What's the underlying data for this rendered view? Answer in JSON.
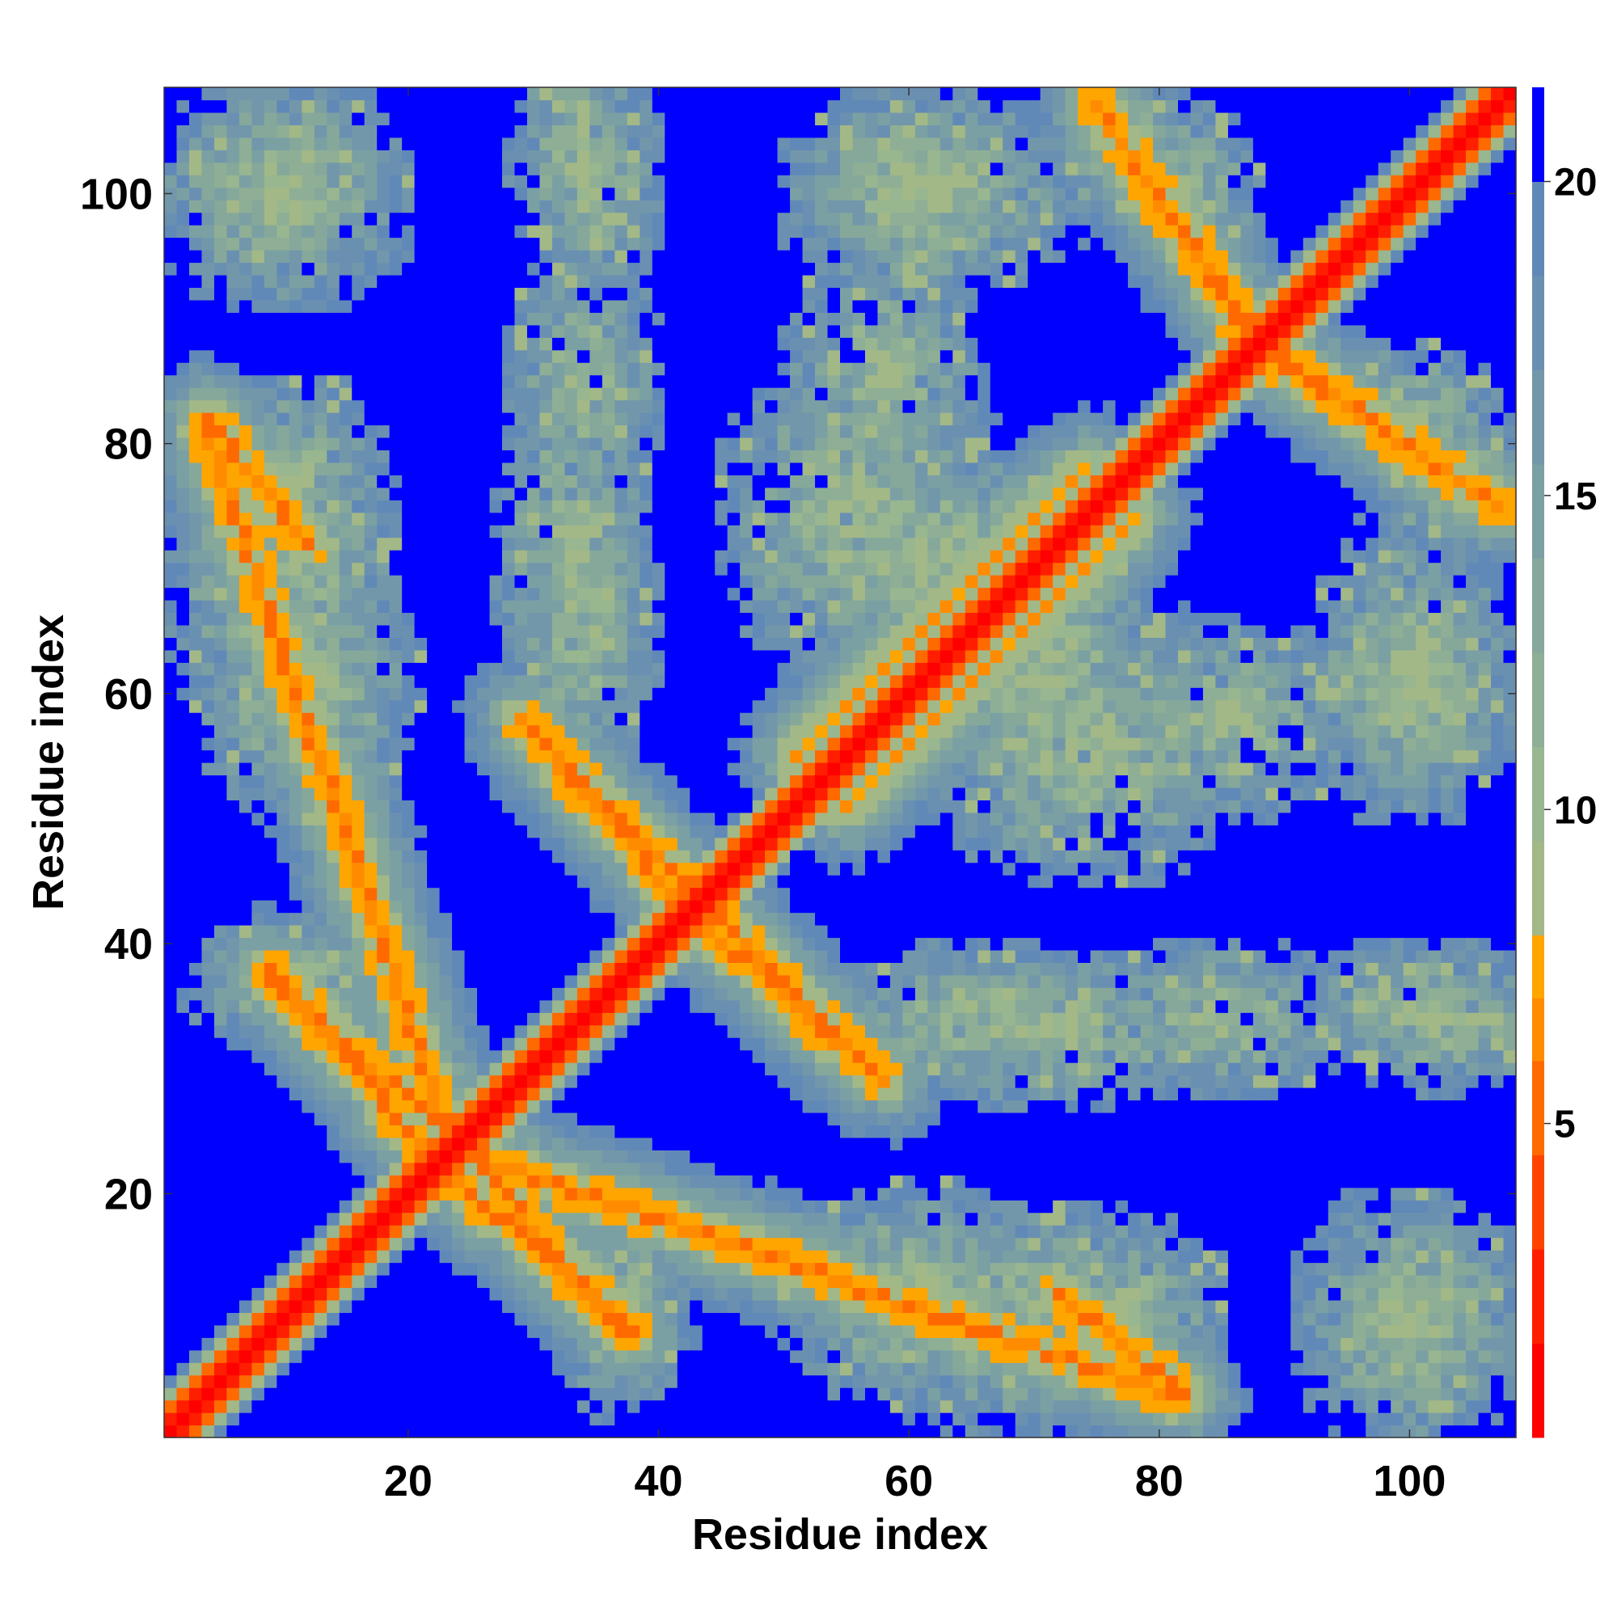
{
  "chart_data": {
    "type": "heatmap",
    "title": "",
    "xlabel": "Residue index",
    "ylabel": "Residue index",
    "n_residues": 108,
    "xlim": [
      0.5,
      108.5
    ],
    "ylim": [
      0.5,
      108.5
    ],
    "x_ticks": [
      20,
      40,
      60,
      80,
      100
    ],
    "y_ticks": [
      20,
      40,
      60,
      80,
      100
    ],
    "colorbar": {
      "range": [
        0,
        21.5
      ],
      "ticks": [
        5,
        10,
        15,
        20
      ],
      "levels": [
        {
          "from": 0,
          "to": 1.5,
          "color": "#ff0000"
        },
        {
          "from": 1.5,
          "to": 3,
          "color": "#ff1e00"
        },
        {
          "from": 3,
          "to": 4.5,
          "color": "#ff4400"
        },
        {
          "from": 4.5,
          "to": 6,
          "color": "#ff6a00"
        },
        {
          "from": 6,
          "to": 7,
          "color": "#ff8c00"
        },
        {
          "from": 7,
          "to": 8,
          "color": "#ffa500"
        },
        {
          "from": 8,
          "to": 9.5,
          "color": "#a3b887"
        },
        {
          "from": 9.5,
          "to": 11,
          "color": "#98b68f"
        },
        {
          "from": 11,
          "to": 12.5,
          "color": "#8eaf95"
        },
        {
          "from": 12.5,
          "to": 14,
          "color": "#85a89b"
        },
        {
          "from": 14,
          "to": 15.5,
          "color": "#7ba0a4"
        },
        {
          "from": 15.5,
          "to": 17,
          "color": "#7297ab"
        },
        {
          "from": 17,
          "to": 18.5,
          "color": "#6a90b1"
        },
        {
          "from": 18.5,
          "to": 20,
          "color": "#6189b8"
        },
        {
          "from": 20,
          "to": 21.5,
          "color": "#0000ff"
        }
      ]
    },
    "grid": false,
    "value_meaning": "pairwise residue distance, values >= 20 shown as blue background",
    "features": [
      {
        "kind": "diagonal",
        "i_from": 1,
        "i_to": 108,
        "offset": 0
      },
      {
        "kind": "antiparallel",
        "a": [
          4,
          81
        ],
        "b": [
          23,
          25
        ],
        "value": 6
      },
      {
        "kind": "antiparallel",
        "a": [
          9,
          37
        ],
        "b": [
          22,
          26
        ],
        "value": 6
      },
      {
        "kind": "antiparallel",
        "a": [
          24,
          21
        ],
        "b": [
          38,
          9
        ],
        "value": 6
      },
      {
        "kind": "antiparallel",
        "a": [
          30,
          57
        ],
        "b": [
          43,
          44
        ],
        "value": 6
      },
      {
        "kind": "antiparallel",
        "a": [
          43,
          42
        ],
        "b": [
          58,
          29
        ],
        "value": 6
      },
      {
        "kind": "antiparallel",
        "a": [
          72,
          12
        ],
        "b": [
          82,
          4
        ],
        "value": 6
      },
      {
        "kind": "antiparallel",
        "a": [
          75,
          107
        ],
        "b": [
          87,
          89
        ],
        "value": 6
      },
      {
        "kind": "antiparallel",
        "a": [
          88,
          88
        ],
        "b": [
          107,
          75
        ],
        "value": 6
      },
      {
        "kind": "parallel_offset",
        "from": 55,
        "to": 74,
        "offset": -4,
        "value": 7
      },
      {
        "kind": "parallel_offset",
        "from": 55,
        "to": 74,
        "offset": 4,
        "value": 7
      }
    ],
    "contact_clusters": [
      {
        "x": 10,
        "y": 100,
        "rx": 8,
        "ry": 9
      },
      {
        "x": 35,
        "y": 100,
        "rx": 5,
        "ry": 8
      },
      {
        "x": 60,
        "y": 100,
        "rx": 9,
        "ry": 8
      },
      {
        "x": 78,
        "y": 103,
        "rx": 7,
        "ry": 6
      },
      {
        "x": 10,
        "y": 70,
        "rx": 9,
        "ry": 15
      },
      {
        "x": 33,
        "y": 72,
        "rx": 6,
        "ry": 14
      },
      {
        "x": 55,
        "y": 74,
        "rx": 10,
        "ry": 12
      },
      {
        "x": 70,
        "y": 62,
        "rx": 12,
        "ry": 12
      },
      {
        "x": 85,
        "y": 58,
        "rx": 10,
        "ry": 8
      },
      {
        "x": 100,
        "y": 62,
        "rx": 8,
        "ry": 12
      },
      {
        "x": 100,
        "y": 82,
        "rx": 7,
        "ry": 6
      },
      {
        "x": 10,
        "y": 37,
        "rx": 8,
        "ry": 5
      },
      {
        "x": 65,
        "y": 34,
        "rx": 10,
        "ry": 6
      },
      {
        "x": 85,
        "y": 34,
        "rx": 10,
        "ry": 6
      },
      {
        "x": 103,
        "y": 34,
        "rx": 8,
        "ry": 6
      },
      {
        "x": 60,
        "y": 12,
        "rx": 10,
        "ry": 9
      },
      {
        "x": 77,
        "y": 10,
        "rx": 8,
        "ry": 8
      },
      {
        "x": 100,
        "y": 10,
        "rx": 9,
        "ry": 10
      }
    ]
  }
}
